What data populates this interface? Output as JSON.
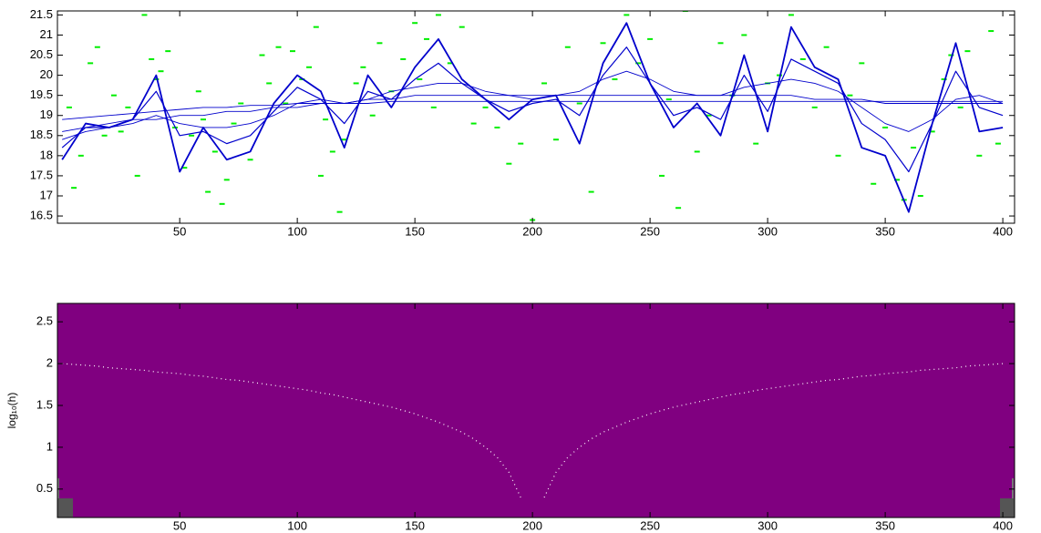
{
  "chart_data": [
    {
      "type": "line",
      "xlim": [
        -2,
        405
      ],
      "ylim": [
        16.32,
        21.6
      ],
      "xticks": [
        50,
        100,
        150,
        200,
        250,
        300,
        350,
        400
      ],
      "yticks": [
        16.5,
        17,
        17.5,
        18,
        18.5,
        19,
        19.5,
        20,
        20.5,
        21,
        21.5
      ],
      "x": [
        0,
        10,
        20,
        30,
        40,
        50,
        60,
        70,
        80,
        90,
        100,
        110,
        120,
        130,
        140,
        150,
        160,
        170,
        180,
        190,
        200,
        210,
        220,
        230,
        240,
        250,
        260,
        270,
        280,
        290,
        300,
        310,
        320,
        330,
        340,
        350,
        360,
        370,
        380,
        390,
        400
      ],
      "series": [
        {
          "color": "#0000cc",
          "width": 1.8,
          "values": [
            17.9,
            18.8,
            18.7,
            18.9,
            20.0,
            17.6,
            18.7,
            17.9,
            18.1,
            19.3,
            20.0,
            19.6,
            18.2,
            20.0,
            19.2,
            20.2,
            20.9,
            19.9,
            19.4,
            18.9,
            19.4,
            19.5,
            18.3,
            20.3,
            21.3,
            19.8,
            18.7,
            19.3,
            18.5,
            20.5,
            18.6,
            21.2,
            20.2,
            19.9,
            18.2,
            18.0,
            16.6,
            18.8,
            20.8,
            18.6,
            18.7
          ]
        },
        {
          "color": "#0000cc",
          "width": 1.2,
          "values": [
            18.2,
            18.7,
            18.7,
            18.9,
            19.6,
            18.5,
            18.6,
            18.3,
            18.5,
            19.1,
            19.7,
            19.4,
            18.8,
            19.6,
            19.4,
            19.9,
            20.3,
            19.8,
            19.4,
            19.1,
            19.3,
            19.4,
            19.0,
            20.0,
            20.7,
            19.8,
            19.0,
            19.2,
            18.9,
            20.0,
            19.1,
            20.4,
            20.1,
            19.8,
            18.8,
            18.4,
            17.6,
            18.8,
            20.1,
            19.2,
            19.0
          ]
        },
        {
          "color": "#0000cc",
          "width": 0.9,
          "values": [
            18.4,
            18.6,
            18.7,
            18.8,
            19.0,
            18.8,
            18.7,
            18.7,
            18.8,
            19.0,
            19.3,
            19.4,
            19.3,
            19.4,
            19.6,
            19.7,
            19.8,
            19.8,
            19.6,
            19.5,
            19.4,
            19.5,
            19.6,
            19.9,
            20.1,
            19.9,
            19.6,
            19.5,
            19.5,
            19.7,
            19.8,
            19.9,
            19.8,
            19.6,
            19.2,
            18.8,
            18.6,
            18.9,
            19.4,
            19.5,
            19.3
          ]
        },
        {
          "color": "#0000cc",
          "width": 0.9,
          "values": [
            18.6,
            18.7,
            18.8,
            18.9,
            18.9,
            19.0,
            19.0,
            19.1,
            19.1,
            19.2,
            19.2,
            19.3,
            19.3,
            19.4,
            19.4,
            19.5,
            19.5,
            19.5,
            19.5,
            19.5,
            19.5,
            19.5,
            19.5,
            19.5,
            19.5,
            19.5,
            19.5,
            19.5,
            19.5,
            19.5,
            19.5,
            19.5,
            19.4,
            19.4,
            19.4,
            19.3,
            19.3,
            19.3,
            19.3,
            19.3,
            19.3
          ]
        },
        {
          "color": "#0000cc",
          "width": 0.9,
          "values": [
            18.9,
            18.95,
            19.0,
            19.05,
            19.1,
            19.15,
            19.2,
            19.2,
            19.25,
            19.25,
            19.3,
            19.3,
            19.3,
            19.3,
            19.35,
            19.35,
            19.35,
            19.35,
            19.35,
            19.35,
            19.35,
            19.35,
            19.35,
            19.35,
            19.35,
            19.35,
            19.35,
            19.35,
            19.35,
            19.35,
            19.35,
            19.35,
            19.35,
            19.35,
            19.35,
            19.35,
            19.35,
            19.35,
            19.35,
            19.35,
            19.35
          ]
        }
      ],
      "scatter": {
        "color": "#00ee00",
        "x": [
          3,
          5,
          8,
          12,
          15,
          18,
          22,
          25,
          28,
          32,
          35,
          38,
          40,
          42,
          45,
          48,
          52,
          55,
          58,
          60,
          62,
          65,
          68,
          70,
          73,
          76,
          80,
          85,
          88,
          92,
          95,
          98,
          102,
          105,
          108,
          110,
          112,
          115,
          118,
          120,
          125,
          128,
          132,
          135,
          140,
          145,
          150,
          152,
          155,
          158,
          160,
          165,
          170,
          175,
          180,
          185,
          190,
          195,
          200,
          205,
          210,
          215,
          220,
          225,
          230,
          235,
          240,
          245,
          250,
          255,
          258,
          262,
          265,
          270,
          275,
          280,
          285,
          290,
          295,
          300,
          305,
          310,
          315,
          320,
          325,
          330,
          335,
          340,
          345,
          350,
          355,
          358,
          362,
          365,
          370,
          375,
          378,
          382,
          385,
          390,
          395,
          398
        ],
        "values": [
          19.2,
          17.2,
          18.0,
          20.3,
          20.7,
          18.5,
          19.5,
          18.6,
          19.2,
          17.5,
          21.5,
          20.4,
          19.9,
          20.1,
          20.6,
          18.7,
          17.7,
          18.5,
          19.6,
          18.9,
          17.1,
          18.1,
          16.8,
          17.4,
          18.8,
          19.3,
          17.9,
          20.5,
          19.8,
          20.7,
          19.3,
          20.6,
          19.9,
          20.2,
          21.2,
          17.5,
          18.9,
          18.1,
          16.6,
          18.4,
          19.8,
          20.2,
          19.0,
          20.8,
          19.6,
          20.4,
          21.3,
          19.9,
          20.9,
          19.2,
          21.5,
          20.3,
          21.2,
          18.8,
          19.2,
          18.7,
          17.8,
          18.3,
          16.4,
          19.8,
          18.4,
          20.7,
          19.3,
          17.1,
          20.8,
          19.9,
          21.5,
          20.3,
          20.9,
          17.5,
          19.4,
          16.7,
          21.6,
          18.1,
          19.0,
          20.8,
          19.5,
          21.0,
          18.3,
          19.8,
          20.0,
          21.5,
          20.4,
          19.2,
          20.7,
          18.0,
          19.5,
          20.3,
          17.3,
          18.7,
          17.4,
          16.9,
          18.2,
          17.0,
          18.6,
          19.9,
          20.5,
          19.2,
          20.6,
          18.0,
          21.1,
          18.3
        ]
      }
    },
    {
      "type": "line",
      "ylabel": "log₁₀(h)",
      "background": "#800080",
      "xlim": [
        -2,
        405
      ],
      "ylim": [
        0.16,
        2.72
      ],
      "xticks": [
        50,
        100,
        150,
        200,
        250,
        300,
        350,
        400
      ],
      "yticks": [
        0.5,
        1,
        1.5,
        2,
        2.5
      ],
      "x": [
        0,
        5,
        10,
        15,
        20,
        25,
        30,
        35,
        40,
        45,
        50,
        55,
        60,
        65,
        70,
        75,
        80,
        85,
        90,
        95,
        100,
        105,
        110,
        115,
        120,
        125,
        130,
        135,
        140,
        145,
        150,
        155,
        160,
        165,
        170,
        175,
        180,
        185,
        190,
        195,
        200,
        205,
        210,
        215,
        220,
        225,
        230,
        235,
        240,
        245,
        250,
        255,
        260,
        265,
        270,
        275,
        280,
        285,
        290,
        295,
        300,
        305,
        310,
        315,
        320,
        325,
        330,
        335,
        340,
        345,
        350,
        355,
        360,
        365,
        370,
        375,
        380,
        385,
        390,
        395,
        400
      ],
      "series": [
        {
          "color": "#ffffff",
          "dashed": true,
          "values": [
            2.0,
            1.99,
            1.98,
            1.97,
            1.95,
            1.94,
            1.93,
            1.92,
            1.9,
            1.89,
            1.88,
            1.86,
            1.85,
            1.83,
            1.81,
            1.8,
            1.78,
            1.76,
            1.74,
            1.72,
            1.7,
            1.68,
            1.65,
            1.63,
            1.6,
            1.57,
            1.54,
            1.51,
            1.48,
            1.44,
            1.4,
            1.35,
            1.3,
            1.24,
            1.18,
            1.1,
            1.0,
            0.88,
            0.7,
            0.4,
            null,
            0.4,
            0.7,
            0.88,
            1.0,
            1.1,
            1.18,
            1.24,
            1.3,
            1.35,
            1.4,
            1.44,
            1.48,
            1.51,
            1.54,
            1.57,
            1.6,
            1.63,
            1.65,
            1.68,
            1.7,
            1.72,
            1.74,
            1.76,
            1.78,
            1.8,
            1.81,
            1.83,
            1.85,
            1.86,
            1.88,
            1.89,
            1.9,
            1.92,
            1.93,
            1.94,
            1.95,
            1.97,
            1.98,
            1.99,
            2.0
          ]
        }
      ]
    }
  ]
}
